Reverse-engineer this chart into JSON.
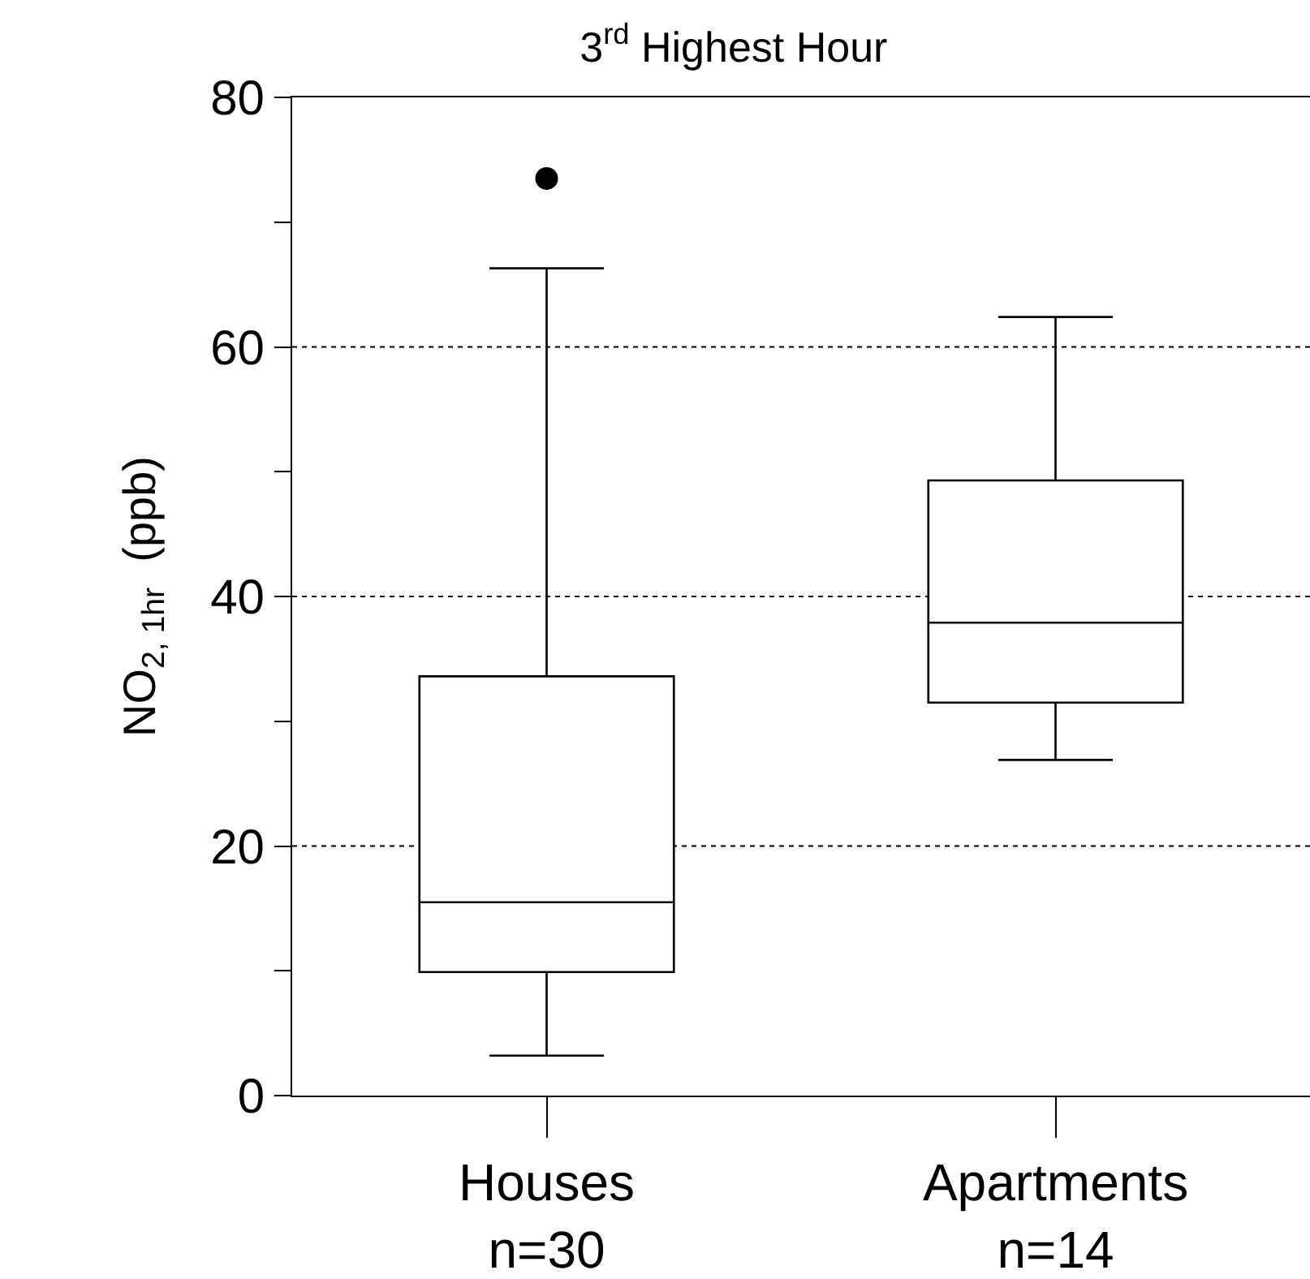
{
  "chart_data": {
    "type": "box",
    "title": "3$^{rd}$ Highest Hour",
    "ylabel": "NO$_{2, 1hr}$  (ppb)",
    "categories": [
      "Houses\nn=30",
      "Apartments\nn=14"
    ],
    "boxes": [
      {
        "low": 3.2,
        "q1": 9.9,
        "median": 15.5,
        "q3": 33.6,
        "high": 66.3,
        "outliers": [
          73.5
        ]
      },
      {
        "low": 26.9,
        "q1": 31.5,
        "median": 37.9,
        "q3": 49.3,
        "high": 62.4
      }
    ],
    "ylim": [
      0,
      80
    ],
    "yticks": [
      0,
      {
        "value": 10,
        "label": null
      },
      20,
      {
        "value": 30,
        "label": null
      },
      40,
      {
        "value": 50,
        "label": null
      },
      60,
      {
        "value": 70,
        "label": null
      },
      80
    ],
    "grid": "y",
    "line_style": "dotted",
    "color": "#000000"
  }
}
